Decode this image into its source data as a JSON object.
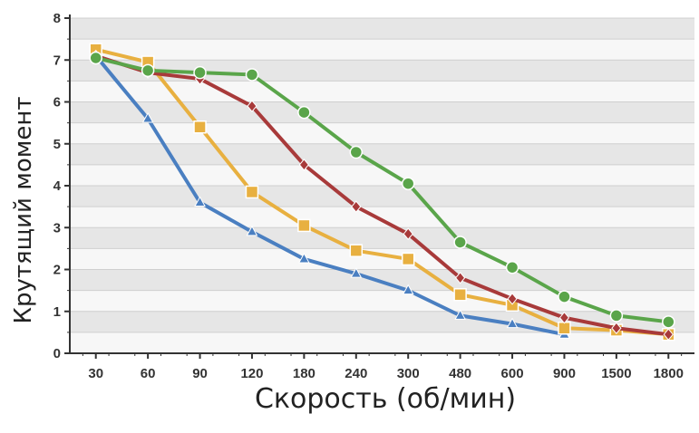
{
  "chart_data": {
    "type": "line",
    "xlabel": "Скорость (об/мин)",
    "ylabel": "Крутящий момент",
    "categories": [
      "30",
      "60",
      "90",
      "120",
      "180",
      "240",
      "300",
      "480",
      "600",
      "900",
      "1500",
      "1800"
    ],
    "y_ticks": [
      "0",
      "1",
      "2",
      "3",
      "4",
      "5",
      "6",
      "7",
      "8"
    ],
    "ylim": [
      0,
      8
    ],
    "grid": true,
    "legend": "none",
    "series": [
      {
        "color": "#4a7fc1",
        "marker": "triangle",
        "values": [
          7.1,
          5.6,
          3.6,
          2.9,
          2.25,
          1.9,
          1.5,
          0.9,
          0.7,
          0.45,
          null,
          null
        ]
      },
      {
        "color": "#e8b040",
        "marker": "square",
        "values": [
          7.25,
          6.95,
          5.4,
          3.85,
          3.05,
          2.45,
          2.25,
          1.4,
          1.15,
          0.6,
          0.55,
          0.45
        ]
      },
      {
        "color": "#a83a3a",
        "marker": "diamond",
        "values": [
          7.1,
          6.7,
          6.55,
          5.9,
          4.5,
          3.5,
          2.85,
          1.8,
          1.3,
          0.85,
          0.6,
          0.45
        ]
      },
      {
        "color": "#5aa54a",
        "marker": "circle",
        "values": [
          7.05,
          6.75,
          6.7,
          6.65,
          5.75,
          4.8,
          4.05,
          2.65,
          2.05,
          1.35,
          0.9,
          0.75
        ]
      }
    ]
  }
}
